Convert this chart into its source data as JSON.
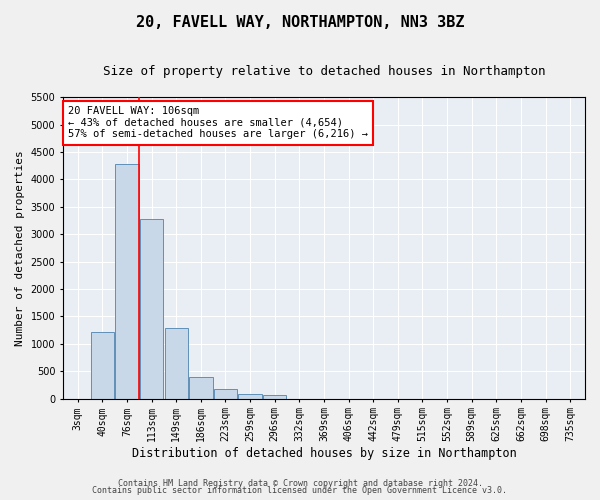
{
  "title": "20, FAVELL WAY, NORTHAMPTON, NN3 3BZ",
  "subtitle": "Size of property relative to detached houses in Northampton",
  "xlabel": "Distribution of detached houses by size in Northampton",
  "ylabel": "Number of detached properties",
  "bar_color": "#c8d8e8",
  "bar_edge_color": "#6090b8",
  "background_color": "#e8eef4",
  "grid_color": "#ffffff",
  "fig_background": "#f0f0f0",
  "categories": [
    "3sqm",
    "40sqm",
    "76sqm",
    "113sqm",
    "149sqm",
    "186sqm",
    "223sqm",
    "259sqm",
    "296sqm",
    "332sqm",
    "369sqm",
    "406sqm",
    "442sqm",
    "479sqm",
    "515sqm",
    "552sqm",
    "589sqm",
    "625sqm",
    "662sqm",
    "698sqm",
    "735sqm"
  ],
  "values": [
    0,
    1220,
    4280,
    3280,
    1280,
    400,
    175,
    90,
    60,
    0,
    0,
    0,
    0,
    0,
    0,
    0,
    0,
    0,
    0,
    0,
    0
  ],
  "ylim": [
    0,
    5500
  ],
  "yticks": [
    0,
    500,
    1000,
    1500,
    2000,
    2500,
    3000,
    3500,
    4000,
    4500,
    5000,
    5500
  ],
  "annotation_title": "20 FAVELL WAY: 106sqm",
  "annotation_line1": "← 43% of detached houses are smaller (4,654)",
  "annotation_line2": "57% of semi-detached houses are larger (6,216) →",
  "marker_bin_index": 2,
  "footer1": "Contains HM Land Registry data © Crown copyright and database right 2024.",
  "footer2": "Contains public sector information licensed under the Open Government Licence v3.0.",
  "title_fontsize": 11,
  "subtitle_fontsize": 9,
  "xlabel_fontsize": 8.5,
  "ylabel_fontsize": 8,
  "tick_fontsize": 7,
  "annot_fontsize": 7.5,
  "footer_fontsize": 6
}
